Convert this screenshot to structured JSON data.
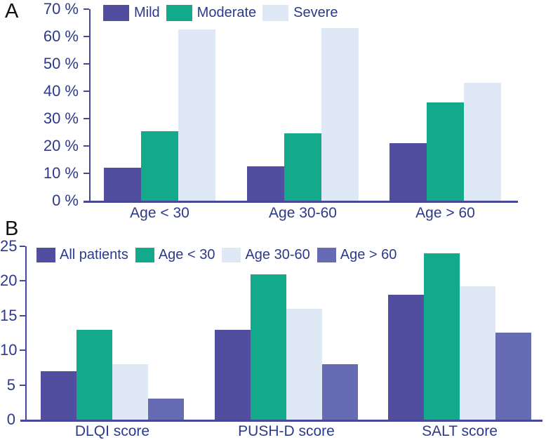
{
  "figure": {
    "panel_labels": [
      "A",
      "B"
    ]
  },
  "chart_data": [
    {
      "type": "bar",
      "panel": "A",
      "categories": [
        "Age < 30",
        "Age 30-60",
        "Age > 60"
      ],
      "series": [
        {
          "name": "Mild",
          "color": "#514e9f",
          "values": [
            12,
            12.5,
            21
          ]
        },
        {
          "name": "Moderate",
          "color": "#13a98b",
          "values": [
            25.5,
            24.5,
            36
          ]
        },
        {
          "name": "Severe",
          "color": "#dfe8f5",
          "values": [
            62.5,
            63,
            43
          ]
        }
      ],
      "ylim": [
        0,
        70
      ],
      "ytick_step": 10,
      "ytick_suffix": " %",
      "legend_position": "top",
      "grid": false
    },
    {
      "type": "bar",
      "panel": "B",
      "categories": [
        "DLQI score",
        "PUSH-D score",
        "SALT score"
      ],
      "series": [
        {
          "name": "All patients",
          "color": "#514e9f",
          "values": [
            7,
            13,
            18
          ]
        },
        {
          "name": "Age < 30",
          "color": "#13a98b",
          "values": [
            13,
            21,
            24
          ]
        },
        {
          "name": "Age 30-60",
          "color": "#dfe8f5",
          "values": [
            8,
            16,
            19.2
          ]
        },
        {
          "name": "Age > 60",
          "color": "#666bb3",
          "values": [
            3,
            8,
            12.6
          ]
        }
      ],
      "ylim": [
        0,
        25
      ],
      "ytick_step": 5,
      "ytick_suffix": "",
      "legend_position": "top",
      "grid": false
    }
  ],
  "colors": {
    "text": "#2c3a8b",
    "axis": "#474899",
    "panel_label": "#111111",
    "background": "#ffffff"
  }
}
